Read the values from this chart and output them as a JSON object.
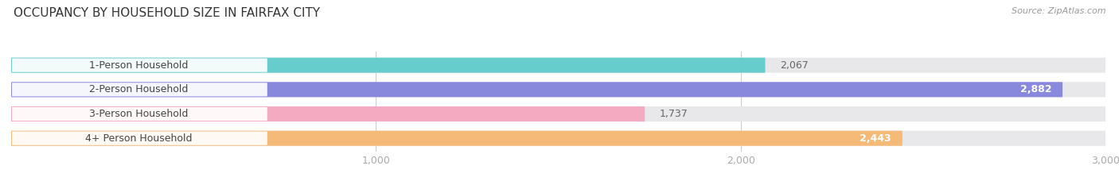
{
  "title": "OCCUPANCY BY HOUSEHOLD SIZE IN FAIRFAX CITY",
  "source": "Source: ZipAtlas.com",
  "categories": [
    "1-Person Household",
    "2-Person Household",
    "3-Person Household",
    "4+ Person Household"
  ],
  "values": [
    2067,
    2882,
    1737,
    2443
  ],
  "bar_colors": [
    "#66cccc",
    "#8888dd",
    "#f4aac0",
    "#f5ba78"
  ],
  "bg_color": "#ffffff",
  "bar_bg_color": "#e8e8ea",
  "label_bg_color": "#ffffff",
  "xlim": [
    0,
    3000
  ],
  "xticks": [
    1000,
    2000,
    3000
  ],
  "xtick_labels": [
    "1,000",
    "2,000",
    "3,000"
  ],
  "title_fontsize": 11,
  "source_fontsize": 8,
  "label_fontsize": 9,
  "value_fontsize": 9,
  "tick_fontsize": 9,
  "bar_height": 0.62,
  "bar_rounding": 0.3
}
